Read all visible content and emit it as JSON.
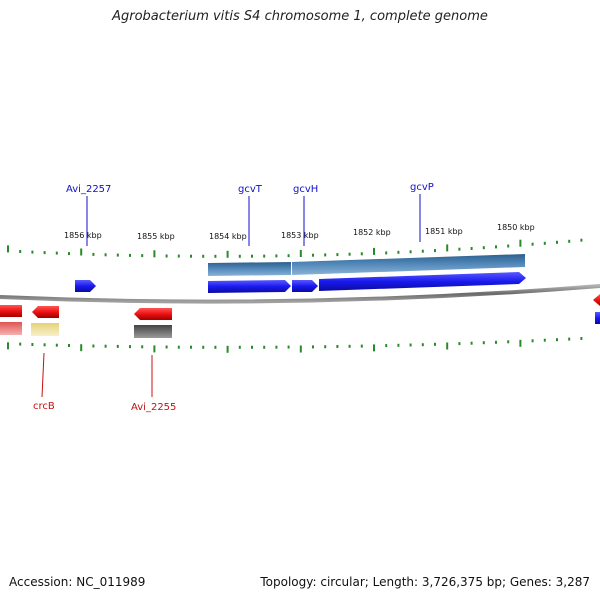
{
  "title": "Agrobacterium vitis S4 chromosome 1, complete genome",
  "footer": {
    "accession": "Accession: NC_011989",
    "summary": "Topology: circular; Length: 3,726,375 bp; Genes: 3,287"
  },
  "scale_labels": [
    "1856 kbp",
    "1855 kbp",
    "1854 kbp",
    "1853 kbp",
    "1852 kbp",
    "1851 kbp",
    "1850 kbp"
  ],
  "gene_labels_forward": [
    "Avi_2257",
    "gcvT",
    "gcvH",
    "gcvP"
  ],
  "gene_labels_reverse": [
    "crcB",
    "Avi_2255"
  ],
  "colors": {
    "forward_gene": "#1a1aee",
    "reverse_gene": "#ee1111",
    "forward_label": "#1010c8",
    "reverse_label": "#c81010",
    "cog_blue": "#4f86b8",
    "cog_pink": "#ee8888",
    "cog_yellow": "#eee0a0",
    "cog_gray": "#666666",
    "tick": "#2a8a2a",
    "backbone": "#808080"
  }
}
